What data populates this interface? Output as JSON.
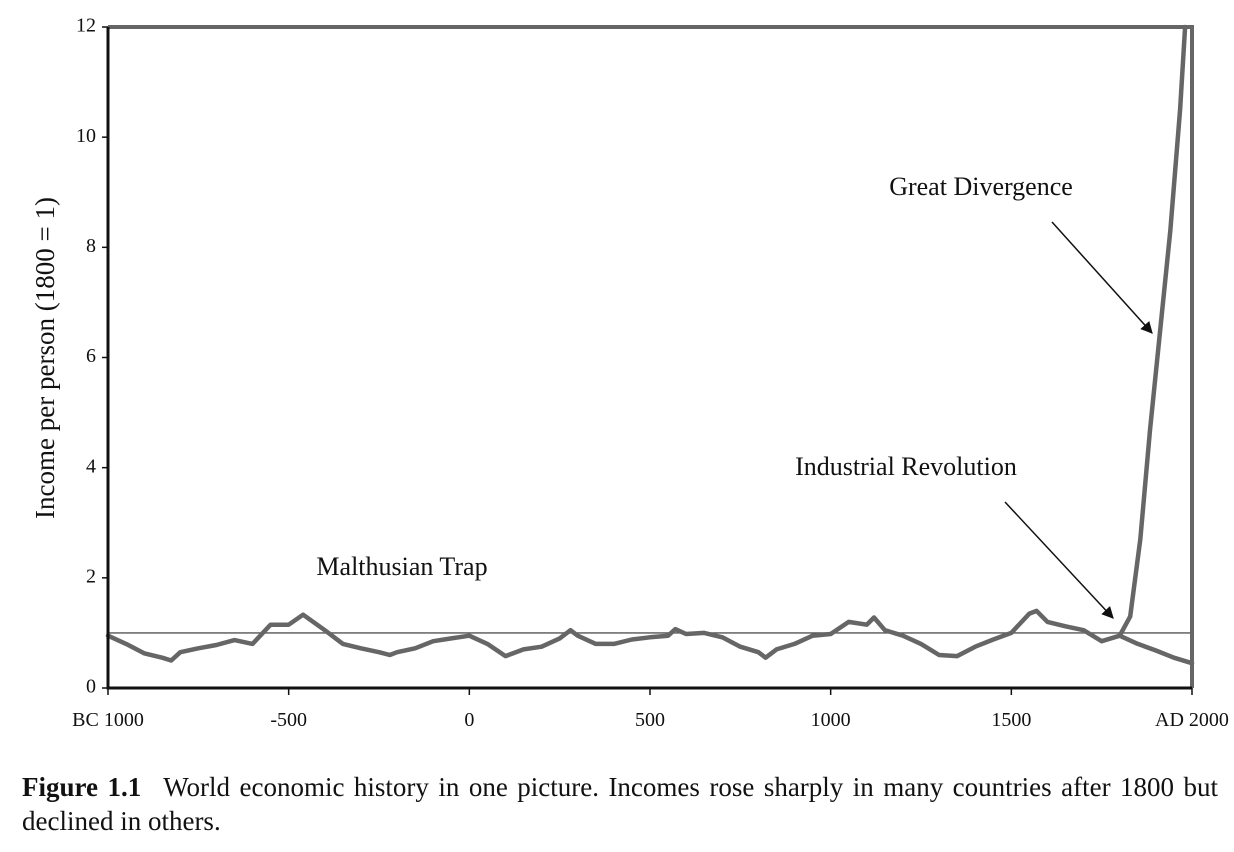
{
  "chart_data": {
    "type": "line",
    "y_label": "Income per person (1800 = 1)",
    "xlim": [
      -1000,
      2000
    ],
    "xticks": [
      {
        "value": -1000,
        "label": "BC 1000"
      },
      -500,
      0,
      500,
      1000,
      1500,
      {
        "value": 2000,
        "label": "AD 2000"
      }
    ],
    "ylim": [
      0,
      12
    ],
    "yticks": [
      0,
      2,
      4,
      6,
      8,
      10,
      12
    ],
    "reference_line": 1,
    "series": [
      {
        "color": "#666666",
        "x": [
          -1000,
          -950,
          -900,
          -850,
          -825,
          -800,
          -750,
          -700,
          -650,
          -600,
          -550,
          -500,
          -460,
          -400,
          -350,
          -300,
          -250,
          -220,
          -200,
          -150,
          -100,
          -50,
          0,
          50,
          100,
          150,
          200,
          250,
          280,
          300,
          350,
          400,
          450,
          500,
          550,
          570,
          600,
          650,
          700,
          750,
          800,
          820,
          850,
          900,
          950,
          1000,
          1050,
          1100,
          1120,
          1150,
          1200,
          1250,
          1300,
          1350,
          1400,
          1450,
          1500,
          1550,
          1570,
          1600,
          1650,
          1700,
          1750,
          1800
        ],
        "values": [
          0.95,
          0.8,
          0.63,
          0.55,
          0.5,
          0.65,
          0.72,
          0.78,
          0.87,
          0.8,
          1.15,
          1.15,
          1.33,
          1.05,
          0.8,
          0.72,
          0.65,
          0.6,
          0.65,
          0.72,
          0.85,
          0.9,
          0.95,
          0.8,
          0.58,
          0.7,
          0.75,
          0.9,
          1.05,
          0.95,
          0.8,
          0.8,
          0.88,
          0.92,
          0.95,
          1.07,
          0.98,
          1.0,
          0.92,
          0.75,
          0.65,
          0.55,
          0.7,
          0.8,
          0.95,
          0.98,
          1.2,
          1.15,
          1.28,
          1.05,
          0.95,
          0.8,
          0.6,
          0.58,
          0.75,
          0.88,
          1.0,
          1.35,
          1.4,
          1.2,
          1.12,
          1.05,
          0.85,
          0.95
        ]
      },
      {
        "color": "#666666",
        "x": [
          1800,
          1829,
          1857,
          1884,
          1912,
          1940,
          1967,
          1981
        ],
        "values": [
          0.95,
          1.3,
          2.7,
          4.7,
          6.5,
          8.3,
          10.5,
          12
        ]
      },
      {
        "color": "#666666",
        "x": [
          1800,
          1850,
          1900,
          1950,
          2000
        ],
        "values": [
          0.95,
          0.8,
          0.68,
          0.55,
          0.45
        ]
      }
    ],
    "annotations": [
      "Great Divergence",
      "Industrial Revolution",
      "Malthusian Trap"
    ],
    "caption_label": "Figure 1.1",
    "caption": "World economic history in one picture. Incomes rose sharply in many countries after 1800 but declined in others."
  }
}
